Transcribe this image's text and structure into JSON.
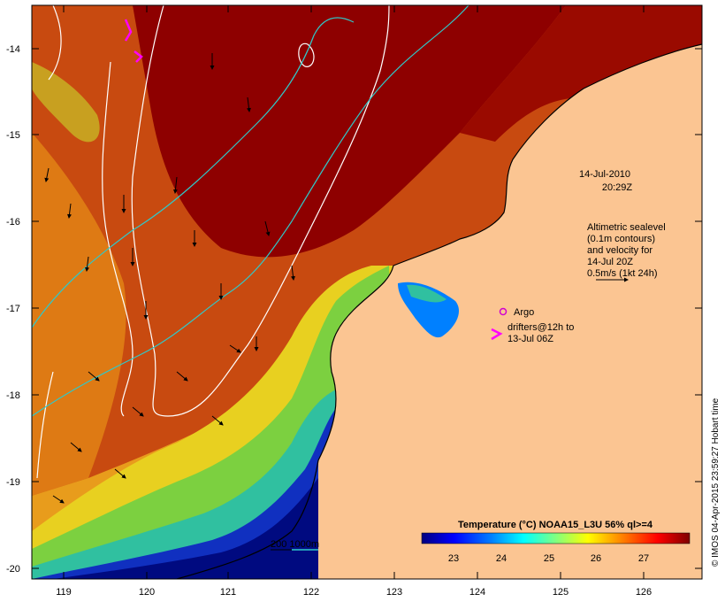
{
  "map": {
    "date": "14-Jul-2010",
    "time": "20:29Z",
    "legend_lines": [
      "Altimetric sealevel",
      "(0.1m contours)",
      "and velocity for",
      "14-Jul 20Z",
      "0.5m/s (1kt 24h)"
    ],
    "argo_label": "Argo",
    "drifters_lines": [
      "drifters@12h to",
      "13-Jul 06Z"
    ],
    "isobath_label": "200  1000m",
    "colorbar": {
      "title": "Temperature (°C) NOAA15_L3U 56% ql>=4",
      "ticks": [
        "23",
        "24",
        "25",
        "26",
        "27"
      ],
      "colors": [
        "#00007f",
        "#0000ff",
        "#0080ff",
        "#00ffff",
        "#80ff80",
        "#ffff00",
        "#ff8000",
        "#ff0000",
        "#7f0000"
      ]
    },
    "credit": "© IMOS 04-Apr-2015 23:59:27 Hobart time",
    "lat_labels": [
      "-14",
      "-15",
      "-16",
      "-17",
      "-18",
      "-19",
      "-20"
    ],
    "lon_labels": [
      "119",
      "120",
      "121",
      "122",
      "123",
      "124",
      "125",
      "126"
    ],
    "colors": {
      "land": "#fbc592",
      "argo": "#d000d0",
      "drifter": "#ff00ff",
      "contour": "#ffffff",
      "isobath": "#30c8c8"
    }
  }
}
